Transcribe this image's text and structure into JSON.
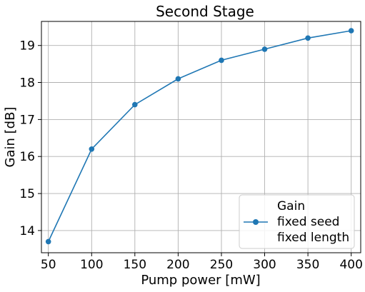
{
  "chart_data": {
    "type": "line",
    "title": "Second Stage",
    "xlabel": "Pump power [mW]",
    "ylabel": "Gain [dB]",
    "xlim": [
      42,
      411
    ],
    "ylim": [
      13.4,
      19.65
    ],
    "xticks": [
      50,
      100,
      150,
      200,
      250,
      300,
      350,
      400
    ],
    "yticks": [
      14,
      15,
      16,
      17,
      18,
      19
    ],
    "grid": true,
    "legend_position": "lower right",
    "legend_lines": [
      "Gain",
      "fixed seed",
      "fixed length"
    ],
    "series": [
      {
        "color": "#1f77b4",
        "marker": "circle",
        "x": [
          50,
          100,
          150,
          200,
          250,
          300,
          350,
          400
        ],
        "y": [
          13.7,
          16.2,
          17.4,
          18.1,
          18.6,
          18.9,
          19.2,
          19.4
        ]
      }
    ]
  }
}
